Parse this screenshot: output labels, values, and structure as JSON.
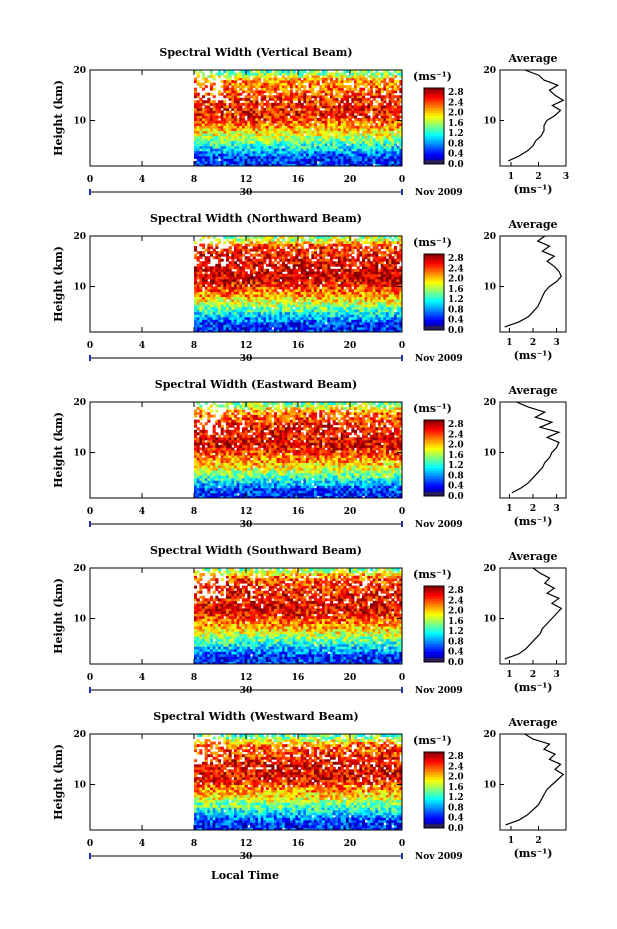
{
  "figure": {
    "xlabel": "Local Time",
    "date_marker": "30",
    "date_label": "Nov 2009",
    "height_label": "Height (km)",
    "unit_label": "(ms⁻¹)",
    "avg_title": "Average"
  },
  "chart_data": [
    {
      "type": "heatmap",
      "title": "Spectral Width (Vertical Beam)",
      "ylabel": "Height (km)",
      "x_ticks": [
        "0",
        "4",
        "8",
        "12",
        "16",
        "20",
        "0"
      ],
      "y_ticks": [
        "20",
        "10"
      ],
      "xlim": [
        0,
        24
      ],
      "ylim": [
        1,
        20
      ],
      "data_start_hour": 8,
      "colorbar": {
        "label": "(ms⁻¹)",
        "ticks": [
          "2.8",
          "2.4",
          "2.0",
          "1.6",
          "1.2",
          "0.8",
          "0.4",
          "0.0"
        ],
        "range": [
          0,
          3.0
        ]
      },
      "profile_bands": [
        {
          "height_km": 2.5,
          "value": 0.5
        },
        {
          "height_km": 5.0,
          "value": 1.2
        },
        {
          "height_km": 8.0,
          "value": 2.0
        },
        {
          "height_km": 11.0,
          "value": 2.6
        },
        {
          "height_km": 14.5,
          "value": 2.5
        },
        {
          "height_km": 18.0,
          "value": 2.2
        },
        {
          "height_km": 19.5,
          "value": 1.4
        }
      ],
      "average": {
        "title": "Average",
        "xlabel": "(ms⁻¹)",
        "x_ticks": [
          "1",
          "2",
          "3"
        ],
        "xlim": [
          0.6,
          3.0
        ],
        "y_ticks": [
          "20",
          "10"
        ],
        "height": [
          2,
          3,
          4,
          5,
          6,
          7,
          8,
          9,
          10,
          11,
          12,
          13,
          14,
          15,
          16,
          17,
          18,
          19,
          20
        ],
        "value": [
          0.9,
          1.3,
          1.6,
          1.8,
          1.9,
          2.1,
          2.2,
          2.2,
          2.3,
          2.6,
          2.8,
          2.5,
          2.9,
          2.6,
          2.4,
          2.7,
          2.2,
          2.0,
          1.5
        ]
      }
    },
    {
      "type": "heatmap",
      "title": "Spectral Width (Northward Beam)",
      "ylabel": "Height (km)",
      "x_ticks": [
        "0",
        "4",
        "8",
        "12",
        "16",
        "20",
        "0"
      ],
      "y_ticks": [
        "20",
        "10"
      ],
      "xlim": [
        0,
        24
      ],
      "ylim": [
        1,
        20
      ],
      "data_start_hour": 8,
      "colorbar": {
        "label": "(ms⁻¹)",
        "ticks": [
          "2.8",
          "2.4",
          "2.0",
          "1.6",
          "1.2",
          "0.8",
          "0.4",
          "0.0"
        ],
        "range": [
          0,
          3.0
        ]
      },
      "profile_bands": [
        {
          "height_km": 2.5,
          "value": 0.5
        },
        {
          "height_km": 5.0,
          "value": 1.2
        },
        {
          "height_km": 8.0,
          "value": 2.1
        },
        {
          "height_km": 11.5,
          "value": 2.8
        },
        {
          "height_km": 15.0,
          "value": 2.7
        },
        {
          "height_km": 18.0,
          "value": 2.5
        },
        {
          "height_km": 19.5,
          "value": 1.6
        }
      ],
      "average": {
        "title": "Average",
        "xlabel": "(ms⁻¹)",
        "x_ticks": [
          "1",
          "2",
          "3"
        ],
        "xlim": [
          0.6,
          3.4
        ],
        "y_ticks": [
          "20",
          "10"
        ],
        "height": [
          2,
          3,
          4,
          5,
          6,
          7,
          8,
          9,
          10,
          11,
          12,
          13,
          14,
          15,
          16,
          17,
          18,
          19,
          20
        ],
        "value": [
          0.8,
          1.4,
          1.8,
          2.0,
          2.2,
          2.3,
          2.4,
          2.5,
          2.7,
          3.0,
          3.2,
          3.1,
          2.9,
          2.6,
          2.9,
          2.4,
          2.7,
          2.2,
          2.5
        ]
      }
    },
    {
      "type": "heatmap",
      "title": "Spectral Width (Eastward Beam)",
      "ylabel": "Height (km)",
      "x_ticks": [
        "0",
        "4",
        "8",
        "12",
        "16",
        "20",
        "0"
      ],
      "y_ticks": [
        "20",
        "10"
      ],
      "xlim": [
        0,
        24
      ],
      "ylim": [
        1,
        20
      ],
      "data_start_hour": 8,
      "colorbar": {
        "label": "(ms⁻¹)",
        "ticks": [
          "2.8",
          "2.4",
          "2.0",
          "1.6",
          "1.2",
          "0.8",
          "0.4",
          "0.0"
        ],
        "range": [
          0,
          3.0
        ]
      },
      "profile_bands": [
        {
          "height_km": 2.5,
          "value": 0.5
        },
        {
          "height_km": 5.0,
          "value": 1.3
        },
        {
          "height_km": 8.0,
          "value": 2.1
        },
        {
          "height_km": 11.5,
          "value": 2.7
        },
        {
          "height_km": 15.0,
          "value": 2.6
        },
        {
          "height_km": 18.0,
          "value": 2.3
        },
        {
          "height_km": 19.5,
          "value": 1.5
        }
      ],
      "average": {
        "title": "Average",
        "xlabel": "(ms⁻¹)",
        "x_ticks": [
          "1",
          "2",
          "3"
        ],
        "xlim": [
          0.6,
          3.4
        ],
        "y_ticks": [
          "20",
          "10"
        ],
        "height": [
          2,
          3,
          4,
          5,
          6,
          7,
          8,
          9,
          10,
          11,
          12,
          13,
          14,
          15,
          16,
          17,
          18,
          19,
          20
        ],
        "value": [
          1.1,
          1.5,
          1.8,
          2.0,
          2.2,
          2.4,
          2.5,
          2.7,
          2.8,
          3.0,
          3.1,
          2.6,
          3.1,
          2.3,
          2.8,
          2.1,
          2.5,
          1.8,
          1.3
        ]
      }
    },
    {
      "type": "heatmap",
      "title": "Spectral Width (Southward Beam)",
      "ylabel": "Height (km)",
      "x_ticks": [
        "0",
        "4",
        "8",
        "12",
        "16",
        "20",
        "0"
      ],
      "y_ticks": [
        "20",
        "10"
      ],
      "xlim": [
        0,
        24
      ],
      "ylim": [
        1,
        20
      ],
      "data_start_hour": 8,
      "colorbar": {
        "label": "(ms⁻¹)",
        "ticks": [
          "2.8",
          "2.4",
          "2.0",
          "1.6",
          "1.2",
          "0.8",
          "0.4",
          "0.0"
        ],
        "range": [
          0,
          3.0
        ]
      },
      "profile_bands": [
        {
          "height_km": 2.5,
          "value": 0.5
        },
        {
          "height_km": 5.0,
          "value": 1.2
        },
        {
          "height_km": 8.0,
          "value": 2.0
        },
        {
          "height_km": 11.5,
          "value": 2.7
        },
        {
          "height_km": 15.0,
          "value": 2.6
        },
        {
          "height_km": 18.0,
          "value": 2.4
        },
        {
          "height_km": 19.5,
          "value": 1.6
        }
      ],
      "average": {
        "title": "Average",
        "xlabel": "(ms⁻¹)",
        "x_ticks": [
          "1",
          "2",
          "3"
        ],
        "xlim": [
          0.6,
          3.4
        ],
        "y_ticks": [
          "20",
          "10"
        ],
        "height": [
          2,
          3,
          4,
          5,
          6,
          7,
          8,
          9,
          10,
          11,
          12,
          13,
          14,
          15,
          16,
          17,
          18,
          19,
          20
        ],
        "value": [
          0.8,
          1.4,
          1.7,
          1.9,
          2.1,
          2.3,
          2.4,
          2.6,
          2.8,
          3.0,
          3.2,
          2.8,
          3.1,
          2.6,
          2.9,
          2.5,
          2.7,
          2.3,
          2.0
        ]
      }
    },
    {
      "type": "heatmap",
      "title": "Spectral Width (Westward Beam)",
      "ylabel": "Height (km)",
      "x_ticks": [
        "0",
        "4",
        "8",
        "12",
        "16",
        "20",
        "0"
      ],
      "y_ticks": [
        "20",
        "10"
      ],
      "xlim": [
        0,
        24
      ],
      "ylim": [
        1,
        20
      ],
      "data_start_hour": 8,
      "colorbar": {
        "label": "(ms⁻¹)",
        "ticks": [
          "2.8",
          "2.4",
          "2.0",
          "1.6",
          "1.2",
          "0.8",
          "0.4",
          "0.0"
        ],
        "range": [
          0,
          3.0
        ]
      },
      "profile_bands": [
        {
          "height_km": 2.5,
          "value": 0.5
        },
        {
          "height_km": 5.0,
          "value": 1.2
        },
        {
          "height_km": 8.0,
          "value": 2.0
        },
        {
          "height_km": 11.5,
          "value": 2.7
        },
        {
          "height_km": 15.0,
          "value": 2.6
        },
        {
          "height_km": 18.0,
          "value": 2.3
        },
        {
          "height_km": 19.5,
          "value": 1.4
        }
      ],
      "average": {
        "title": "Average",
        "xlabel": "(ms⁻¹)",
        "x_ticks": [
          "1",
          "2"
        ],
        "xlim": [
          0.6,
          3.0
        ],
        "y_ticks": [
          "20",
          "10"
        ],
        "height": [
          2,
          3,
          4,
          5,
          6,
          7,
          8,
          9,
          10,
          11,
          12,
          13,
          14,
          15,
          16,
          17,
          18,
          19,
          20
        ],
        "value": [
          0.8,
          1.3,
          1.6,
          1.8,
          2.0,
          2.1,
          2.2,
          2.3,
          2.5,
          2.7,
          2.9,
          2.6,
          2.8,
          2.4,
          2.6,
          2.2,
          2.4,
          1.8,
          1.5
        ]
      }
    }
  ]
}
